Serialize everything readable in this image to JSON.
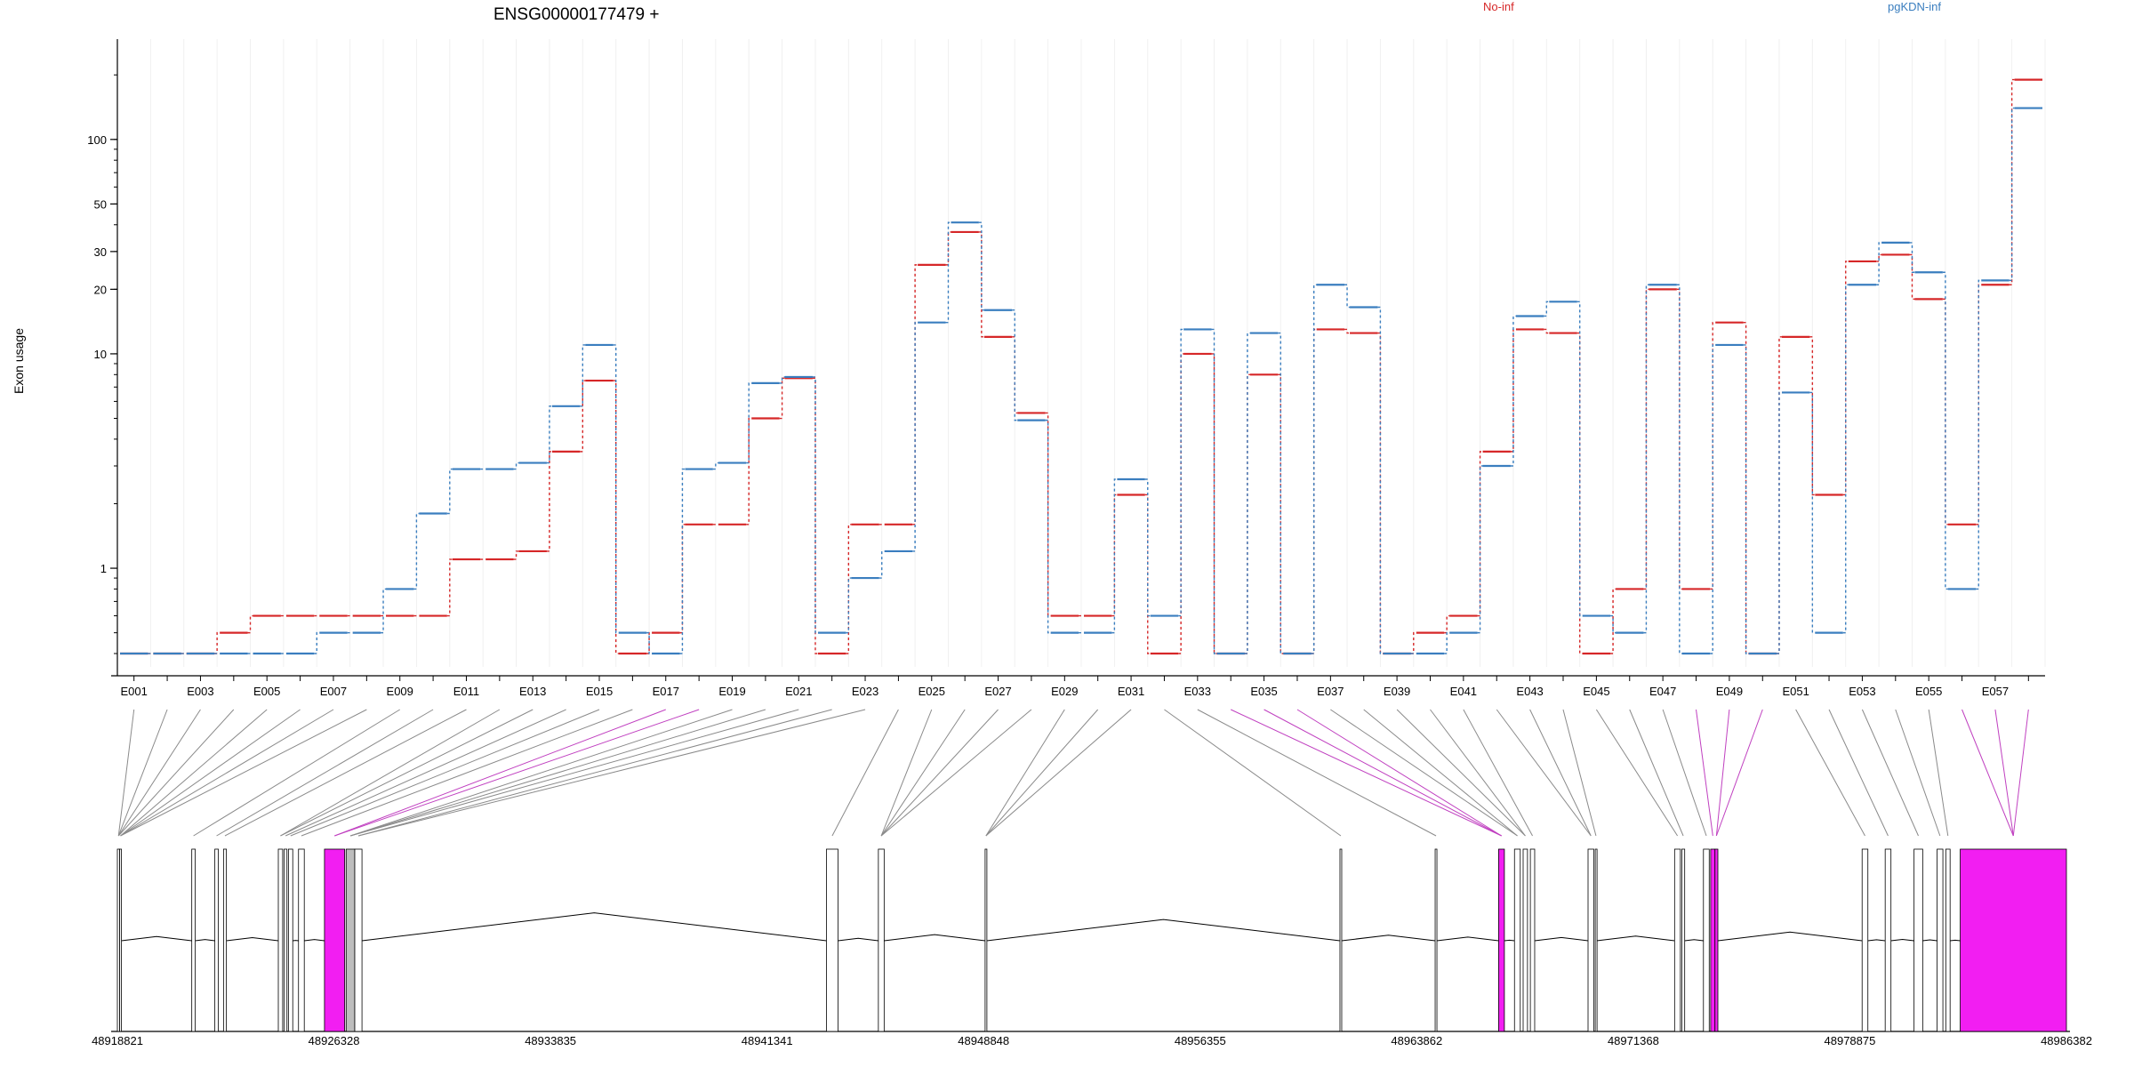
{
  "chart_data": {
    "type": "line",
    "title": "ENSG00000177479 +",
    "ylabel": "Exon usage",
    "xlabel": "",
    "y_scale": "log",
    "ylim": [
      0.4,
      280
    ],
    "y_ticks": [
      1,
      10,
      20,
      30,
      50,
      100
    ],
    "y_tick_labels": [
      "1",
      "10",
      "20",
      "30",
      "50",
      "100"
    ],
    "grid": "vertical light lines at each exon bin",
    "legend": [
      {
        "name": "No-inf",
        "color": "#d62728",
        "position": "top"
      },
      {
        "name": "pgKDN-inf",
        "color": "#3a7ebf",
        "position": "top-right"
      }
    ],
    "categories": [
      "E001",
      "E002",
      "E003",
      "E004",
      "E005",
      "E006",
      "E007",
      "E008",
      "E009",
      "E010",
      "E011",
      "E012",
      "E013",
      "E014",
      "E015",
      "E016",
      "E017",
      "E018",
      "E019",
      "E020",
      "E021",
      "E022",
      "E023",
      "E024",
      "E025",
      "E026",
      "E027",
      "E028",
      "E029",
      "E030",
      "E031",
      "E032",
      "E033",
      "E034",
      "E035",
      "E036",
      "E037",
      "E038",
      "E039",
      "E040",
      "E041",
      "E042",
      "E043",
      "E044",
      "E045",
      "E046",
      "E047",
      "E048",
      "E049",
      "E050",
      "E051",
      "E052",
      "E053",
      "E054",
      "E055",
      "E056",
      "E057",
      "E058"
    ],
    "x_tick_labels": [
      "E001",
      "E003",
      "E005",
      "E007",
      "E009",
      "E011",
      "E013",
      "E015",
      "E017",
      "E019",
      "E021",
      "E023",
      "E025",
      "E027",
      "E029",
      "E031",
      "E033",
      "E035",
      "E037",
      "E039",
      "E041",
      "E043",
      "E045",
      "E047",
      "E049",
      "E051",
      "E053",
      "E055",
      "E057"
    ],
    "series": [
      {
        "name": "No-inf",
        "color": "#d62728",
        "values": [
          0.4,
          0.4,
          0.4,
          0.5,
          0.6,
          0.6,
          0.6,
          0.6,
          0.6,
          0.6,
          1.1,
          1.1,
          1.2,
          3.5,
          7.5,
          0.4,
          0.5,
          1.6,
          1.6,
          5,
          7.7,
          0.4,
          1.6,
          1.6,
          26,
          37,
          12,
          5.3,
          0.6,
          0.6,
          2.2,
          0.4,
          10,
          0.4,
          8,
          0.4,
          13,
          12.5,
          0.4,
          0.5,
          0.6,
          3.5,
          13,
          12.5,
          0.4,
          0.8,
          20,
          0.8,
          14,
          0.4,
          12,
          2.2,
          27,
          29,
          18,
          1.6,
          21,
          190
        ]
      },
      {
        "name": "pgKDN-inf",
        "color": "#3a7ebf",
        "values": [
          0.4,
          0.4,
          0.4,
          0.4,
          0.4,
          0.4,
          0.5,
          0.5,
          0.8,
          1.8,
          2.9,
          2.9,
          3.1,
          5.7,
          11,
          0.5,
          0.4,
          2.9,
          3.1,
          7.3,
          7.8,
          0.5,
          0.9,
          1.2,
          14,
          41,
          16,
          4.9,
          0.5,
          0.5,
          2.6,
          0.6,
          13,
          0.4,
          12.5,
          0.4,
          21,
          16.5,
          0.4,
          0.4,
          0.5,
          3,
          15,
          17.5,
          0.6,
          0.5,
          21,
          0.4,
          11,
          0.4,
          6.6,
          0.5,
          21,
          33,
          24,
          0.8,
          22,
          140
        ]
      }
    ]
  },
  "gene_model": {
    "coordinate_labels": [
      "48918821",
      "48926328",
      "48933835",
      "48941341",
      "48948848",
      "48956355",
      "48963862",
      "48971368",
      "48978875",
      "48986382"
    ],
    "coordinate_range": [
      48918821,
      48986382
    ],
    "highlight_color": "#f21ef2",
    "exon_color": "#ffffff",
    "shaded_exon_color": "#bdbdbd",
    "intron_color": "#000000"
  }
}
